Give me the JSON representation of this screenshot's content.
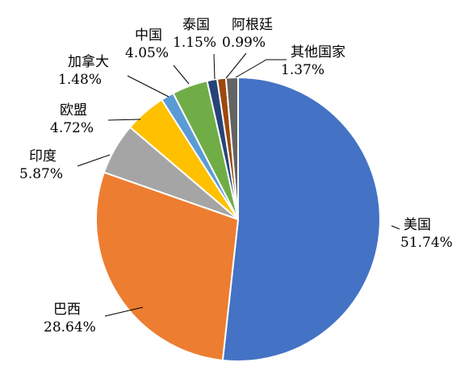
{
  "chart_data": {
    "type": "pie",
    "title": "",
    "slices": [
      {
        "name": "美国",
        "value": 51.74,
        "label": "51.74%",
        "color": "#4472c4"
      },
      {
        "name": "巴西",
        "value": 28.64,
        "label": "28.64%",
        "color": "#ed7d31"
      },
      {
        "name": "印度",
        "value": 5.87,
        "label": "5.87%",
        "color": "#a5a5a5"
      },
      {
        "name": "欧盟",
        "value": 4.72,
        "label": "4.72%",
        "color": "#ffc000"
      },
      {
        "name": "加拿大",
        "value": 1.48,
        "label": "1.48%",
        "color": "#5b9bd5"
      },
      {
        "name": "中国",
        "value": 4.05,
        "label": "4.05%",
        "color": "#70ad47"
      },
      {
        "name": "泰国",
        "value": 1.15,
        "label": "1.15%",
        "color": "#264478"
      },
      {
        "name": "阿根廷",
        "value": 0.99,
        "label": "0.99%",
        "color": "#9e480e"
      },
      {
        "name": "其他国家",
        "value": 1.37,
        "label": "1.37%",
        "color": "#636363"
      }
    ],
    "start_angle_deg": 0,
    "direction": "clockwise",
    "legend": "none"
  }
}
